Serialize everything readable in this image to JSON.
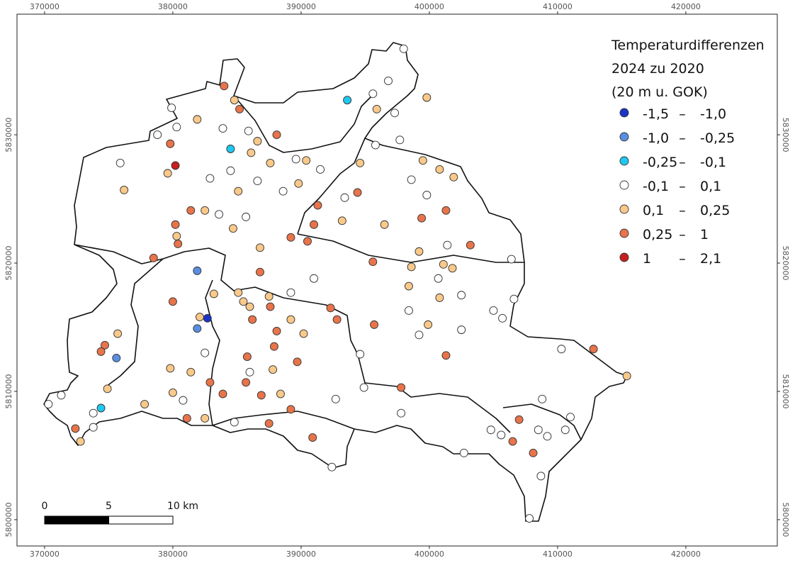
{
  "map": {
    "xlim": [
      367850,
      427130
    ],
    "ylim": [
      5797950,
      5839400
    ],
    "xticks": [
      370000,
      380000,
      390000,
      400000,
      410000,
      420000
    ],
    "yticks": [
      5800000,
      5810000,
      5820000,
      5830000
    ],
    "points": [
      [
        398000,
        5836700,
        3
      ],
      [
        396800,
        5834200,
        3
      ],
      [
        395600,
        5833200,
        3
      ],
      [
        395900,
        5832000,
        4
      ],
      [
        397300,
        5831700,
        3
      ],
      [
        399800,
        5832900,
        4
      ],
      [
        393600,
        5832700,
        2
      ],
      [
        397700,
        5829600,
        3
      ],
      [
        395800,
        5829200,
        3
      ],
      [
        384000,
        5833800,
        5
      ],
      [
        384800,
        5832700,
        4
      ],
      [
        385200,
        5832000,
        5
      ],
      [
        379900,
        5832100,
        3
      ],
      [
        381900,
        5831200,
        4
      ],
      [
        383900,
        5830500,
        3
      ],
      [
        385900,
        5830300,
        3
      ],
      [
        378800,
        5830000,
        3
      ],
      [
        380300,
        5830600,
        3
      ],
      [
        379800,
        5829300,
        5
      ],
      [
        384500,
        5828900,
        2
      ],
      [
        386600,
        5829500,
        4
      ],
      [
        386100,
        5828600,
        4
      ],
      [
        388100,
        5830000,
        5
      ],
      [
        389600,
        5828100,
        3
      ],
      [
        390400,
        5828000,
        4
      ],
      [
        391500,
        5827300,
        3
      ],
      [
        387600,
        5827800,
        4
      ],
      [
        375900,
        5827800,
        3
      ],
      [
        380200,
        5827600,
        6
      ],
      [
        379600,
        5827000,
        4
      ],
      [
        382900,
        5826600,
        3
      ],
      [
        384500,
        5827200,
        3
      ],
      [
        386600,
        5826400,
        3
      ],
      [
        385100,
        5825600,
        4
      ],
      [
        376200,
        5825700,
        4
      ],
      [
        388600,
        5825600,
        3
      ],
      [
        389800,
        5826200,
        4
      ],
      [
        394600,
        5827800,
        4
      ],
      [
        399500,
        5828000,
        4
      ],
      [
        400800,
        5827300,
        4
      ],
      [
        401900,
        5826700,
        4
      ],
      [
        398600,
        5826500,
        3
      ],
      [
        399800,
        5825300,
        3
      ],
      [
        393400,
        5825100,
        3
      ],
      [
        394400,
        5825500,
        5
      ],
      [
        391300,
        5824500,
        5
      ],
      [
        381400,
        5824100,
        5
      ],
      [
        382500,
        5824100,
        4
      ],
      [
        383600,
        5823800,
        3
      ],
      [
        385700,
        5823600,
        3
      ],
      [
        384700,
        5822700,
        4
      ],
      [
        380200,
        5823000,
        5
      ],
      [
        380300,
        5822100,
        4
      ],
      [
        380400,
        5821500,
        5
      ],
      [
        393200,
        5823300,
        4
      ],
      [
        391000,
        5823000,
        5
      ],
      [
        396500,
        5823000,
        4
      ],
      [
        399400,
        5823500,
        5
      ],
      [
        401300,
        5824100,
        5
      ],
      [
        389200,
        5822000,
        5
      ],
      [
        390500,
        5821700,
        5
      ],
      [
        386800,
        5821200,
        4
      ],
      [
        378500,
        5820400,
        5
      ],
      [
        401400,
        5821400,
        3
      ],
      [
        403200,
        5821400,
        5
      ],
      [
        399200,
        5820900,
        4
      ],
      [
        395600,
        5820100,
        5
      ],
      [
        398600,
        5819700,
        4
      ],
      [
        401100,
        5819900,
        4
      ],
      [
        401800,
        5819600,
        4
      ],
      [
        406400,
        5820300,
        3
      ],
      [
        381900,
        5819400,
        1
      ],
      [
        386800,
        5819300,
        5
      ],
      [
        391000,
        5818800,
        3
      ],
      [
        400700,
        5818800,
        3
      ],
      [
        398400,
        5818200,
        4
      ],
      [
        383200,
        5817600,
        4
      ],
      [
        385100,
        5817700,
        4
      ],
      [
        385500,
        5817000,
        4
      ],
      [
        386000,
        5816600,
        4
      ],
      [
        387500,
        5817400,
        4
      ],
      [
        389200,
        5817700,
        3
      ],
      [
        402500,
        5817500,
        3
      ],
      [
        406600,
        5817200,
        3
      ],
      [
        380000,
        5817000,
        5
      ],
      [
        400800,
        5817300,
        4
      ],
      [
        382100,
        5815800,
        4
      ],
      [
        382700,
        5815700,
        0
      ],
      [
        386200,
        5815600,
        5
      ],
      [
        387600,
        5816600,
        5
      ],
      [
        389200,
        5815600,
        4
      ],
      [
        392300,
        5816500,
        5
      ],
      [
        392800,
        5815600,
        5
      ],
      [
        398400,
        5816300,
        3
      ],
      [
        405000,
        5816300,
        3
      ],
      [
        405700,
        5815700,
        3
      ],
      [
        381900,
        5814900,
        1
      ],
      [
        375700,
        5814500,
        4
      ],
      [
        388100,
        5814700,
        5
      ],
      [
        390200,
        5814500,
        4
      ],
      [
        395700,
        5815200,
        5
      ],
      [
        399900,
        5815200,
        4
      ],
      [
        402500,
        5814800,
        3
      ],
      [
        399200,
        5814400,
        3
      ],
      [
        374700,
        5813600,
        5
      ],
      [
        374400,
        5813100,
        5
      ],
      [
        382500,
        5813000,
        3
      ],
      [
        375600,
        5812600,
        1
      ],
      [
        387900,
        5813500,
        5
      ],
      [
        385800,
        5812700,
        5
      ],
      [
        394600,
        5812900,
        3
      ],
      [
        401300,
        5812800,
        5
      ],
      [
        410300,
        5813300,
        3
      ],
      [
        412800,
        5813300,
        5
      ],
      [
        379800,
        5811800,
        4
      ],
      [
        381400,
        5811500,
        4
      ],
      [
        386000,
        5811500,
        3
      ],
      [
        387800,
        5811700,
        4
      ],
      [
        389700,
        5812300,
        5
      ],
      [
        415400,
        5811200,
        4
      ],
      [
        382900,
        5810700,
        5
      ],
      [
        385700,
        5810700,
        5
      ],
      [
        374900,
        5810200,
        4
      ],
      [
        380000,
        5809900,
        4
      ],
      [
        383900,
        5809800,
        5
      ],
      [
        386900,
        5809700,
        5
      ],
      [
        388400,
        5809800,
        4
      ],
      [
        392700,
        5809400,
        3
      ],
      [
        394900,
        5810300,
        3
      ],
      [
        397800,
        5810300,
        5
      ],
      [
        371300,
        5809700,
        3
      ],
      [
        370300,
        5809000,
        3
      ],
      [
        377800,
        5809000,
        4
      ],
      [
        380800,
        5809300,
        3
      ],
      [
        374400,
        5808700,
        2
      ],
      [
        373800,
        5808300,
        3
      ],
      [
        389200,
        5808600,
        5
      ],
      [
        397800,
        5808300,
        3
      ],
      [
        408800,
        5809400,
        3
      ],
      [
        381100,
        5807900,
        5
      ],
      [
        382500,
        5807900,
        4
      ],
      [
        384800,
        5807600,
        3
      ],
      [
        387500,
        5807500,
        5
      ],
      [
        373800,
        5807200,
        3
      ],
      [
        372400,
        5807100,
        5
      ],
      [
        372800,
        5806100,
        4
      ],
      [
        390900,
        5806400,
        5
      ],
      [
        407000,
        5807800,
        5
      ],
      [
        411000,
        5808000,
        3
      ],
      [
        404800,
        5807000,
        3
      ],
      [
        405600,
        5806600,
        3
      ],
      [
        406500,
        5806100,
        5
      ],
      [
        408500,
        5807000,
        3
      ],
      [
        409200,
        5806500,
        3
      ],
      [
        410600,
        5807000,
        3
      ],
      [
        408100,
        5805200,
        5
      ],
      [
        402700,
        5805200,
        3
      ],
      [
        392400,
        5804100,
        3
      ],
      [
        408700,
        5803400,
        3
      ],
      [
        407800,
        5800100,
        3
      ]
    ]
  },
  "legend": {
    "title": [
      "Temperaturdifferenzen",
      "2024 zu 2020",
      "(20 m u. GOK)"
    ],
    "separator": "–",
    "classes": [
      {
        "min": {
          "value": -1.5,
          "label": "-1,5"
        },
        "max": {
          "value": -1.0,
          "label": "-1,0"
        },
        "color": "#1a34c8"
      },
      {
        "min": {
          "value": -1.0,
          "label": "-1,0"
        },
        "max": {
          "value": -0.25,
          "label": "-0,25"
        },
        "color": "#5a8ee0"
      },
      {
        "min": {
          "value": -0.25,
          "label": "-0,25"
        },
        "max": {
          "value": -0.1,
          "label": "-0,1"
        },
        "color": "#1ec8f0"
      },
      {
        "min": {
          "value": -0.1,
          "label": "-0,1"
        },
        "max": {
          "value": 0.1,
          "label": "0,1"
        },
        "color": "#ffffff"
      },
      {
        "min": {
          "value": 0.1,
          "label": "0,1"
        },
        "max": {
          "value": 0.25,
          "label": "0,25"
        },
        "color": "#f9c98a"
      },
      {
        "min": {
          "value": 0.25,
          "label": "0,25"
        },
        "max": 1,
        "color": "#e7744a"
      },
      {
        "min": 1,
        "max": {
          "value": 2.1,
          "label": "2,1"
        },
        "color": "#c81e1e"
      }
    ]
  },
  "scalebar": {
    "ticks": [
      0,
      5,
      {
        "value": 10,
        "label": "10 km"
      }
    ]
  }
}
